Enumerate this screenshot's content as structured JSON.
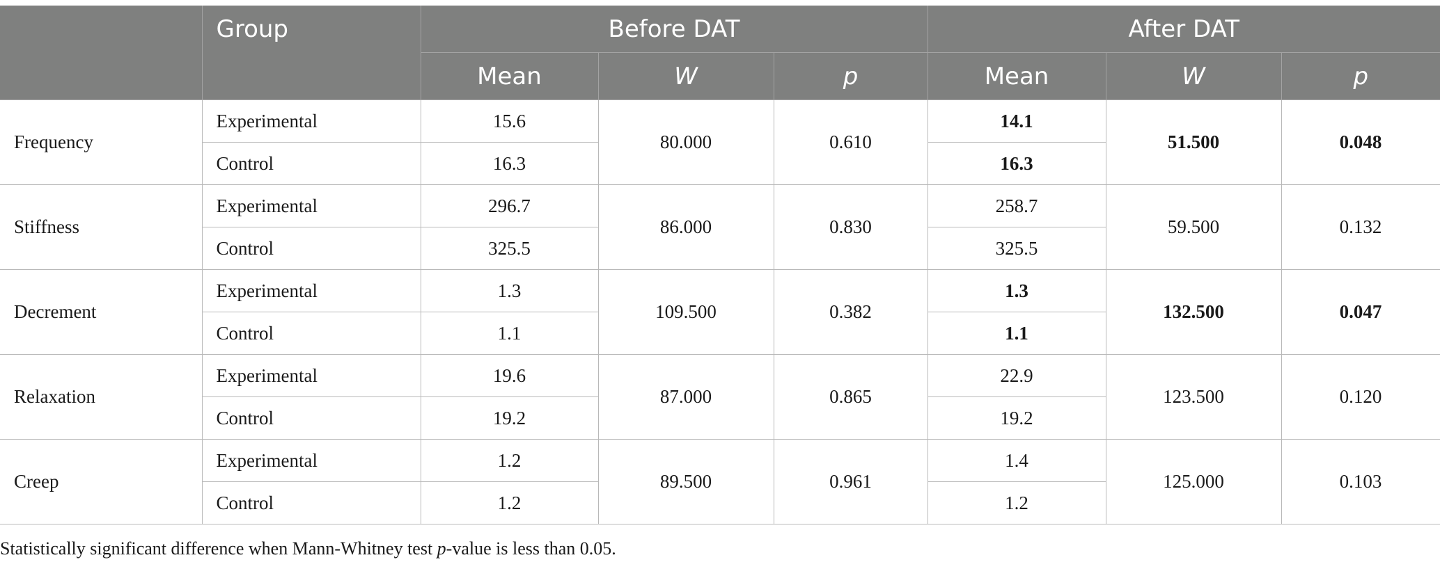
{
  "header": {
    "group": "Group",
    "before": "Before DAT",
    "after": "After DAT",
    "mean": "Mean",
    "w": "W",
    "p": "p"
  },
  "rows": [
    {
      "measure": "Frequency",
      "exp_label": "Experimental",
      "ctrl_label": "Control",
      "before_exp_mean": "15.6",
      "before_ctrl_mean": "16.3",
      "before_w": "80.000",
      "before_p": "0.610",
      "after_exp_mean": "14.1",
      "after_ctrl_mean": "16.3",
      "after_w": "51.500",
      "after_p": "0.048",
      "after_bold": true
    },
    {
      "measure": "Stiffness",
      "exp_label": "Experimental",
      "ctrl_label": "Control",
      "before_exp_mean": "296.7",
      "before_ctrl_mean": "325.5",
      "before_w": "86.000",
      "before_p": "0.830",
      "after_exp_mean": "258.7",
      "after_ctrl_mean": "325.5",
      "after_w": "59.500",
      "after_p": "0.132",
      "after_bold": false
    },
    {
      "measure": "Decrement",
      "exp_label": "Experimental",
      "ctrl_label": "Control",
      "before_exp_mean": "1.3",
      "before_ctrl_mean": "1.1",
      "before_w": "109.500",
      "before_p": "0.382",
      "after_exp_mean": "1.3",
      "after_ctrl_mean": "1.1",
      "after_w": "132.500",
      "after_p": "0.047",
      "after_bold": true
    },
    {
      "measure": "Relaxation",
      "exp_label": "Experimental",
      "ctrl_label": "Control",
      "before_exp_mean": "19.6",
      "before_ctrl_mean": "19.2",
      "before_w": "87.000",
      "before_p": "0.865",
      "after_exp_mean": "22.9",
      "after_ctrl_mean": "19.2",
      "after_w": "123.500",
      "after_p": "0.120",
      "after_bold": false
    },
    {
      "measure": "Creep",
      "exp_label": "Experimental",
      "ctrl_label": "Control",
      "before_exp_mean": "1.2",
      "before_ctrl_mean": "1.2",
      "before_w": "89.500",
      "before_p": "0.961",
      "after_exp_mean": "1.4",
      "after_ctrl_mean": "1.2",
      "after_w": "125.000",
      "after_p": "0.103",
      "after_bold": false
    }
  ],
  "footnote": {
    "pre": "Statistically significant difference when Mann-Whitney test ",
    "p_italic": "p",
    "post": "-value is less than 0.05."
  },
  "colors": {
    "header_bg": "#7f807f",
    "header_text": "#ffffff",
    "grid": "#b8b8b8"
  }
}
